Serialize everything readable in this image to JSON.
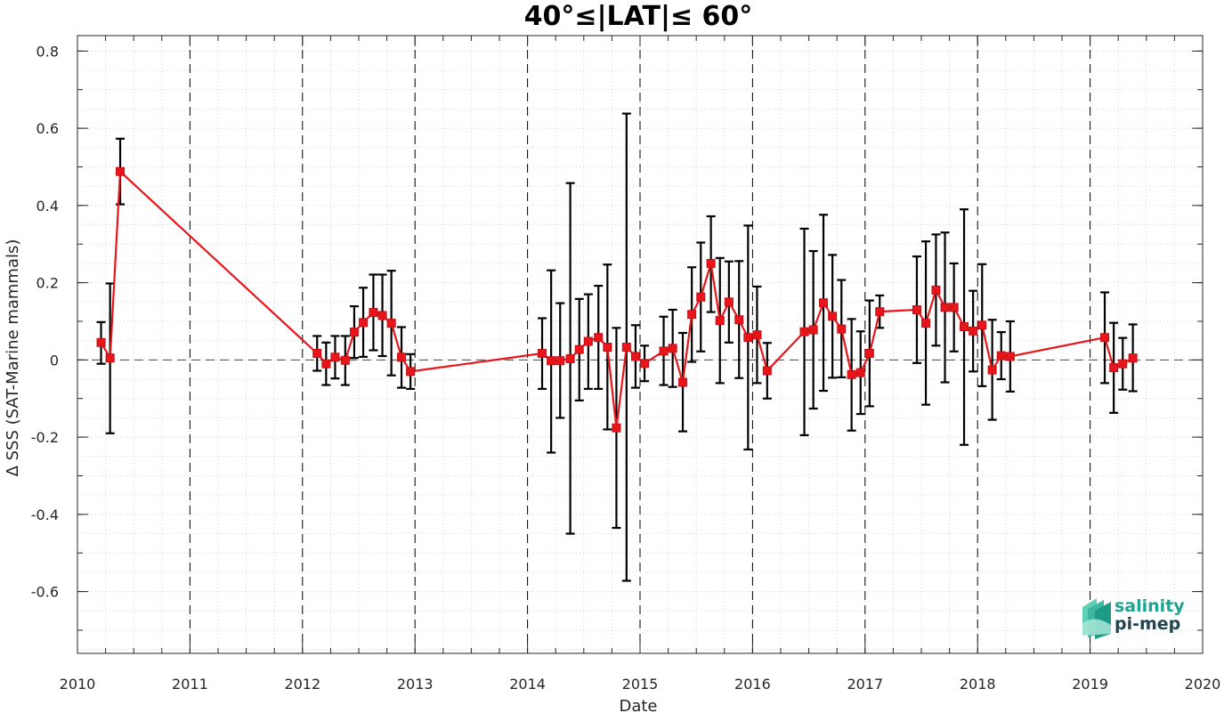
{
  "chart_data": {
    "type": "line",
    "title": "40°≤|LAT|≤ 60°",
    "xlabel": "Date",
    "ylabel": "Δ SSS (SAT-Marine mammals)",
    "xlim": [
      2010,
      2020
    ],
    "ylim": [
      -0.76,
      0.84
    ],
    "x_ticks": [
      "2010",
      "2011",
      "2012",
      "2013",
      "2014",
      "2015",
      "2016",
      "2017",
      "2018",
      "2019",
      "2020"
    ],
    "y_ticks": [
      "0.8",
      "0.6",
      "0.4",
      "0.2",
      "0",
      "-0.2",
      "-0.4",
      "-0.6"
    ],
    "y_tick_values": [
      0.8,
      0.6,
      0.4,
      0.2,
      0,
      -0.2,
      -0.4,
      -0.6
    ],
    "grid": "dotted-minor",
    "year_lines": [
      2011,
      2012,
      2013,
      2014,
      2015,
      2016,
      2017,
      2018,
      2019
    ],
    "zero_line": 0,
    "series": [
      {
        "color": "#e8151b",
        "marker": "square",
        "points": [
          {
            "x": 2010.21,
            "y": 0.045,
            "lo": -0.01,
            "hi": 0.098
          },
          {
            "x": 2010.29,
            "y": 0.005,
            "lo": -0.19,
            "hi": 0.198
          },
          {
            "x": 2010.38,
            "y": 0.488,
            "lo": 0.403,
            "hi": 0.573
          },
          {
            "x": 2012.13,
            "y": 0.017,
            "lo": -0.028,
            "hi": 0.062
          },
          {
            "x": 2012.21,
            "y": -0.01,
            "lo": -0.065,
            "hi": 0.045
          },
          {
            "x": 2012.29,
            "y": 0.007,
            "lo": -0.048,
            "hi": 0.062
          },
          {
            "x": 2012.38,
            "y": -0.001,
            "lo": -0.065,
            "hi": 0.062
          },
          {
            "x": 2012.46,
            "y": 0.072,
            "lo": 0.005,
            "hi": 0.139
          },
          {
            "x": 2012.54,
            "y": 0.097,
            "lo": 0.008,
            "hi": 0.187
          },
          {
            "x": 2012.63,
            "y": 0.123,
            "lo": 0.025,
            "hi": 0.221
          },
          {
            "x": 2012.71,
            "y": 0.115,
            "lo": 0.01,
            "hi": 0.221
          },
          {
            "x": 2012.79,
            "y": 0.095,
            "lo": -0.04,
            "hi": 0.231
          },
          {
            "x": 2012.88,
            "y": 0.007,
            "lo": -0.072,
            "hi": 0.085
          },
          {
            "x": 2012.96,
            "y": -0.03,
            "lo": -0.075,
            "hi": 0.015
          },
          {
            "x": 2014.13,
            "y": 0.017,
            "lo": -0.075,
            "hi": 0.108
          },
          {
            "x": 2014.21,
            "y": -0.002,
            "lo": -0.24,
            "hi": 0.232
          },
          {
            "x": 2014.29,
            "y": -0.002,
            "lo": -0.15,
            "hi": 0.147
          },
          {
            "x": 2014.38,
            "y": 0.003,
            "lo": -0.45,
            "hi": 0.458
          },
          {
            "x": 2014.46,
            "y": 0.027,
            "lo": -0.105,
            "hi": 0.158
          },
          {
            "x": 2014.54,
            "y": 0.048,
            "lo": -0.075,
            "hi": 0.17
          },
          {
            "x": 2014.63,
            "y": 0.058,
            "lo": -0.075,
            "hi": 0.192
          },
          {
            "x": 2014.71,
            "y": 0.033,
            "lo": -0.18,
            "hi": 0.247
          },
          {
            "x": 2014.79,
            "y": -0.176,
            "lo": -0.435,
            "hi": 0.083
          },
          {
            "x": 2014.88,
            "y": 0.033,
            "lo": -0.572,
            "hi": 0.638
          },
          {
            "x": 2014.96,
            "y": 0.009,
            "lo": -0.072,
            "hi": 0.09
          },
          {
            "x": 2015.04,
            "y": -0.009,
            "lo": -0.055,
            "hi": 0.037
          },
          {
            "x": 2015.21,
            "y": 0.023,
            "lo": -0.065,
            "hi": 0.112
          },
          {
            "x": 2015.29,
            "y": 0.03,
            "lo": -0.07,
            "hi": 0.13
          },
          {
            "x": 2015.38,
            "y": -0.058,
            "lo": -0.185,
            "hi": 0.07
          },
          {
            "x": 2015.46,
            "y": 0.118,
            "lo": -0.005,
            "hi": 0.24
          },
          {
            "x": 2015.54,
            "y": 0.163,
            "lo": 0.022,
            "hi": 0.304
          },
          {
            "x": 2015.63,
            "y": 0.25,
            "lo": 0.124,
            "hi": 0.372
          },
          {
            "x": 2015.71,
            "y": 0.102,
            "lo": -0.06,
            "hi": 0.264
          },
          {
            "x": 2015.79,
            "y": 0.15,
            "lo": 0.045,
            "hi": 0.255
          },
          {
            "x": 2015.88,
            "y": 0.104,
            "lo": -0.047,
            "hi": 0.256
          },
          {
            "x": 2015.96,
            "y": 0.058,
            "lo": -0.232,
            "hi": 0.348
          },
          {
            "x": 2016.04,
            "y": 0.065,
            "lo": -0.06,
            "hi": 0.19
          },
          {
            "x": 2016.13,
            "y": -0.028,
            "lo": -0.1,
            "hi": 0.044
          },
          {
            "x": 2016.46,
            "y": 0.073,
            "lo": -0.195,
            "hi": 0.34
          },
          {
            "x": 2016.54,
            "y": 0.078,
            "lo": -0.126,
            "hi": 0.282
          },
          {
            "x": 2016.63,
            "y": 0.148,
            "lo": -0.08,
            "hi": 0.376
          },
          {
            "x": 2016.71,
            "y": 0.113,
            "lo": -0.046,
            "hi": 0.272
          },
          {
            "x": 2016.79,
            "y": 0.08,
            "lo": -0.045,
            "hi": 0.207
          },
          {
            "x": 2016.88,
            "y": -0.038,
            "lo": -0.183,
            "hi": 0.106
          },
          {
            "x": 2016.96,
            "y": -0.033,
            "lo": -0.14,
            "hi": 0.074
          },
          {
            "x": 2017.04,
            "y": 0.017,
            "lo": -0.12,
            "hi": 0.154
          },
          {
            "x": 2017.13,
            "y": 0.125,
            "lo": 0.083,
            "hi": 0.167
          },
          {
            "x": 2017.46,
            "y": 0.13,
            "lo": -0.008,
            "hi": 0.268
          },
          {
            "x": 2017.54,
            "y": 0.095,
            "lo": -0.116,
            "hi": 0.307
          },
          {
            "x": 2017.63,
            "y": 0.181,
            "lo": 0.037,
            "hi": 0.325
          },
          {
            "x": 2017.71,
            "y": 0.136,
            "lo": -0.058,
            "hi": 0.33
          },
          {
            "x": 2017.79,
            "y": 0.136,
            "lo": 0.022,
            "hi": 0.25
          },
          {
            "x": 2017.88,
            "y": 0.086,
            "lo": -0.22,
            "hi": 0.39
          },
          {
            "x": 2017.96,
            "y": 0.075,
            "lo": -0.03,
            "hi": 0.179
          },
          {
            "x": 2018.04,
            "y": 0.09,
            "lo": -0.068,
            "hi": 0.248
          },
          {
            "x": 2018.13,
            "y": -0.026,
            "lo": -0.155,
            "hi": 0.104
          },
          {
            "x": 2018.21,
            "y": 0.011,
            "lo": -0.05,
            "hi": 0.072
          },
          {
            "x": 2018.29,
            "y": 0.009,
            "lo": -0.082,
            "hi": 0.1
          },
          {
            "x": 2019.13,
            "y": 0.058,
            "lo": -0.06,
            "hi": 0.175
          },
          {
            "x": 2019.21,
            "y": -0.02,
            "lo": -0.137,
            "hi": 0.096
          },
          {
            "x": 2019.29,
            "y": -0.01,
            "lo": -0.077,
            "hi": 0.057
          },
          {
            "x": 2019.38,
            "y": 0.005,
            "lo": -0.081,
            "hi": 0.092
          }
        ]
      }
    ]
  },
  "logo": {
    "line1": "salinity",
    "line2": "pi-mep",
    "color1": "#1fa58f",
    "color2": "#23454f"
  }
}
